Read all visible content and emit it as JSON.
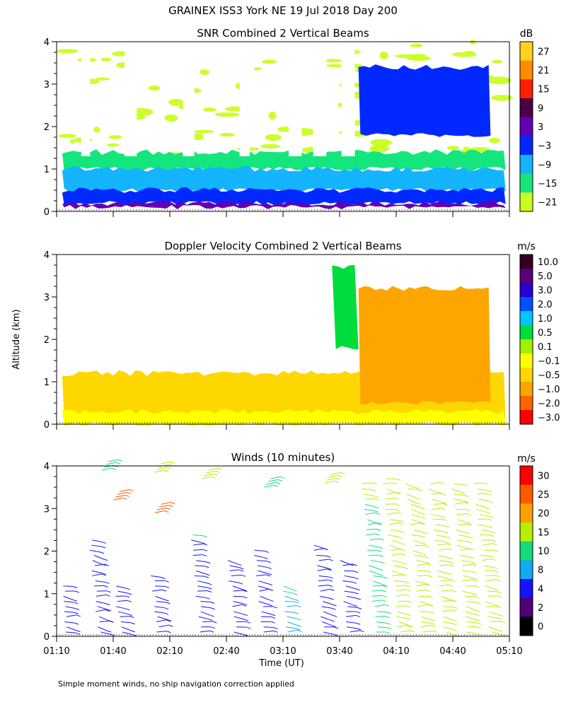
{
  "figure": {
    "title": "GRAINEX ISS3 York NE  19 Jul 2018 Day 200",
    "y_axis_label": "Altitude (km)",
    "x_axis_label": "Time (UT)",
    "footnote": "Simple moment winds, no ship navigation correction applied"
  },
  "chart_data": [
    {
      "type": "heatmap",
      "title": "SNR Combined 2 Vertical Beams",
      "xlabel": "Time (UT)",
      "ylabel": "Altitude (km)",
      "x_range": [
        "01:10",
        "05:10"
      ],
      "ylim": [
        0,
        4
      ],
      "y_ticks": [
        "0",
        "1",
        "2",
        "3",
        "4"
      ],
      "colorbar": {
        "unit": "dB",
        "labels": [
          "27",
          "21",
          "15",
          "9",
          "3",
          "−3",
          "−9",
          "−15",
          "−21"
        ],
        "colors": [
          "#ffd21e",
          "#ff8c00",
          "#ff2000",
          "#4b0046",
          "#6400b4",
          "#0028ff",
          "#14b4ff",
          "#14e67d",
          "#c8ff1e"
        ]
      },
      "missing_gaps_start": [
        "01:23",
        "01:46",
        "02:17",
        "02:47",
        "03:13",
        "03:26",
        "03:41"
      ],
      "bands": [
        {
          "level": "-21",
          "alt_km": [
            1.3,
            4.0
          ],
          "note": "patchy, sparse"
        },
        {
          "level": "-15",
          "alt_km": [
            1.0,
            1.4
          ]
        },
        {
          "level": "-9",
          "alt_km": [
            0.5,
            1.0
          ]
        },
        {
          "level": "-3",
          "alt_km": [
            0.2,
            0.5
          ]
        },
        {
          "level": "3",
          "alt_km": [
            0.1,
            0.2
          ]
        },
        {
          "level": "-3",
          "alt_km": [
            1.8,
            3.4
          ],
          "time": [
            "03:50",
            "05:00"
          ],
          "note": "blue layer late"
        }
      ]
    },
    {
      "type": "heatmap",
      "title": "Doppler Velocity Combined 2 Vertical Beams",
      "xlabel": "Time (UT)",
      "ylabel": "Altitude (km)",
      "x_range": [
        "01:10",
        "05:10"
      ],
      "ylim": [
        0,
        4
      ],
      "y_ticks": [
        "0",
        "1",
        "2",
        "3",
        "4"
      ],
      "colorbar": {
        "unit": "m/s",
        "labels": [
          "10.0",
          "5.0",
          "3.0",
          "2.0",
          "1.0",
          "0.5",
          "0.1",
          "−0.1",
          "−0.5",
          "−1.0",
          "−2.0",
          "−3.0"
        ],
        "colors": [
          "#32001e",
          "#5a0078",
          "#2800d2",
          "#0050ff",
          "#00c8ff",
          "#00dc3c",
          "#a0f000",
          "#ffff00",
          "#ffd700",
          "#ffa500",
          "#ff6400",
          "#ff0000"
        ]
      },
      "bands": [
        {
          "level": "-0.5",
          "alt_km": [
            0.1,
            1.2
          ]
        },
        {
          "level": "-0.1",
          "alt_km": [
            0.0,
            0.3
          ]
        },
        {
          "level": "-1.0",
          "alt_km": [
            0.5,
            3.2
          ],
          "time": [
            "03:50",
            "05:00"
          ]
        },
        {
          "level": "0.5",
          "alt_km": [
            1.8,
            3.7
          ],
          "time": [
            "03:36",
            "03:50"
          ]
        }
      ]
    },
    {
      "type": "scatter",
      "subtype": "wind-barbs",
      "title": "Winds (10 minutes)",
      "xlabel": "Time (UT)",
      "ylabel": "Altitude (km)",
      "x_ticks": [
        "01:10",
        "01:40",
        "02:10",
        "02:40",
        "03:10",
        "03:40",
        "04:10",
        "04:40",
        "05:10"
      ],
      "ylim": [
        0,
        4
      ],
      "y_ticks": [
        "0",
        "1",
        "2",
        "3",
        "4"
      ],
      "colorbar": {
        "unit": "m/s",
        "labels": [
          "30",
          "25",
          "20",
          "15",
          "10",
          "8",
          "4",
          "2",
          "0"
        ],
        "colors": [
          "#ff0000",
          "#ff5a00",
          "#ffa000",
          "#b4f000",
          "#14dc78",
          "#14aaf0",
          "#1414ff",
          "#500078",
          "#000000"
        ]
      },
      "profiles": [
        {
          "time": "01:16",
          "top_km": 1.3,
          "speed_m_s": 4
        },
        {
          "time": "01:33",
          "top_km": 2.3,
          "speed_m_s": 4
        },
        {
          "time": "01:44",
          "top_km": 1.2,
          "speed_m_s": 4
        },
        {
          "time": "02:04",
          "top_km": 1.5,
          "speed_m_s": 4
        },
        {
          "time": "02:27",
          "top_km": 2.4,
          "speed_m_s": 4
        },
        {
          "time": "02:45",
          "top_km": 1.8,
          "speed_m_s": 4
        },
        {
          "time": "03:00",
          "top_km": 2.1,
          "speed_m_s": 4
        },
        {
          "time": "03:13",
          "top_km": 1.3,
          "speed_m_s": 8
        },
        {
          "time": "03:32",
          "top_km": 2.2,
          "speed_m_s": 4
        },
        {
          "time": "03:45",
          "top_km": 1.9,
          "speed_m_s": 4
        },
        {
          "time": "04:00",
          "top_km": 3.6,
          "speed_m_s": 10
        },
        {
          "time": "04:12",
          "top_km": 3.8,
          "speed_m_s": 15
        },
        {
          "time": "04:24",
          "top_km": 3.7,
          "speed_m_s": 15
        },
        {
          "time": "04:36",
          "top_km": 3.7,
          "speed_m_s": 15
        },
        {
          "time": "04:48",
          "top_km": 3.6,
          "speed_m_s": 15
        },
        {
          "time": "05:00",
          "top_km": 3.7,
          "speed_m_s": 15
        }
      ],
      "upper_barbs": [
        {
          "time": "01:34",
          "alt_km": 3.9,
          "speed_m_s": 10
        },
        {
          "time": "01:40",
          "alt_km": 3.2,
          "speed_m_s": 25
        },
        {
          "time": "02:02",
          "alt_km": 3.85,
          "speed_m_s": 15
        },
        {
          "time": "02:02",
          "alt_km": 2.9,
          "speed_m_s": 25
        },
        {
          "time": "02:27",
          "alt_km": 3.7,
          "speed_m_s": 15
        },
        {
          "time": "03:00",
          "alt_km": 3.5,
          "speed_m_s": 10
        },
        {
          "time": "03:32",
          "alt_km": 3.6,
          "speed_m_s": 15
        }
      ]
    }
  ]
}
